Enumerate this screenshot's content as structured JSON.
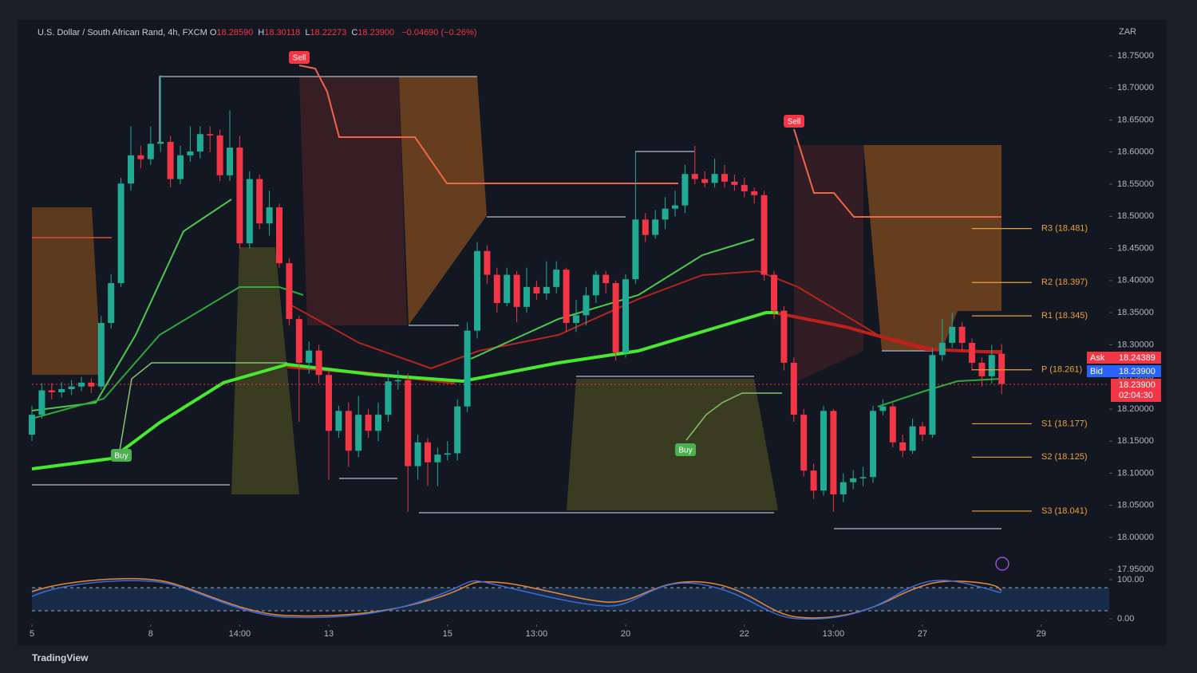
{
  "chart_data": {
    "type": "candlestick",
    "title": "U.S. Dollar / South African Rand, 4h, FXCM",
    "header": [
      {
        "key": "O",
        "value": "18.28590"
      },
      {
        "key": "H",
        "value": "18.30118"
      },
      {
        "key": "L",
        "value": "18.22273"
      },
      {
        "key": "C",
        "value": "18.23900"
      }
    ],
    "change": "−0.04690 (−0.26%)",
    "currency": "ZAR",
    "up_color": "#22ab94",
    "down_color": "#f23645",
    "open": [
      18.16,
      18.191,
      18.229,
      18.226,
      18.231,
      18.235,
      18.241,
      18.235,
      18.334,
      18.396,
      18.551,
      18.595,
      18.589,
      18.613,
      18.616,
      18.558,
      18.595,
      18.601,
      18.628,
      18.626,
      18.564,
      18.607,
      18.458,
      18.558,
      18.489,
      18.514,
      18.427,
      18.34,
      18.272,
      18.291,
      18.253,
      18.166,
      18.197,
      18.135,
      18.191,
      18.166,
      18.191,
      18.243,
      18.245,
      18.111,
      18.148,
      18.117,
      18.129,
      18.131,
      18.204,
      18.322,
      18.446,
      18.409,
      18.365,
      18.409,
      18.359,
      18.39,
      18.38,
      18.39,
      18.417,
      18.334,
      18.346,
      18.377,
      18.409,
      18.396,
      18.288,
      18.402,
      18.495,
      18.471,
      18.495,
      18.512,
      18.517,
      18.566,
      18.558,
      18.552,
      18.566,
      18.554,
      18.549,
      18.539,
      18.533,
      18.409,
      18.353,
      18.272,
      18.191,
      18.104,
      18.073,
      18.197,
      18.067,
      18.086,
      18.092,
      18.094,
      18.197,
      18.204,
      18.148,
      18.135,
      18.173,
      18.16,
      18.284,
      18.303,
      18.328,
      18.303,
      18.272,
      18.251,
      18.286
    ],
    "high": [
      18.205,
      18.24,
      18.24,
      18.242,
      18.245,
      18.25,
      18.248,
      18.345,
      18.41,
      18.56,
      18.64,
      18.61,
      18.64,
      18.72,
      18.625,
      18.61,
      18.64,
      18.64,
      18.64,
      18.635,
      18.665,
      18.625,
      18.57,
      18.565,
      18.54,
      18.52,
      18.435,
      18.345,
      18.305,
      18.3,
      18.26,
      18.205,
      18.21,
      18.22,
      18.2,
      18.21,
      18.255,
      18.26,
      18.255,
      18.16,
      18.155,
      18.14,
      18.15,
      18.215,
      18.335,
      18.46,
      18.455,
      18.42,
      18.42,
      18.415,
      18.42,
      18.4,
      18.43,
      18.43,
      18.42,
      18.37,
      18.39,
      18.415,
      18.415,
      18.4,
      18.41,
      18.6,
      18.505,
      18.51,
      18.53,
      18.54,
      18.58,
      18.61,
      18.57,
      18.59,
      18.58,
      18.565,
      18.56,
      18.545,
      18.54,
      18.415,
      18.36,
      18.28,
      18.2,
      18.115,
      18.205,
      18.2,
      18.1,
      18.105,
      18.11,
      18.205,
      18.215,
      18.21,
      18.16,
      18.185,
      18.18,
      18.295,
      18.34,
      18.35,
      18.335,
      18.31,
      18.28,
      18.3,
      18.301
    ],
    "low": [
      18.15,
      18.185,
      18.215,
      18.218,
      18.222,
      18.228,
      18.225,
      18.23,
      18.325,
      18.39,
      18.54,
      18.575,
      18.58,
      18.6,
      18.545,
      18.55,
      18.585,
      18.59,
      18.6,
      18.555,
      18.555,
      18.45,
      18.45,
      18.48,
      18.47,
      18.42,
      18.33,
      18.18,
      18.255,
      18.24,
      18.09,
      18.155,
      18.11,
      18.125,
      18.155,
      18.15,
      18.18,
      18.23,
      18.04,
      18.09,
      18.08,
      18.08,
      18.12,
      18.12,
      18.195,
      18.31,
      18.395,
      18.35,
      18.36,
      18.335,
      18.35,
      18.37,
      18.37,
      18.38,
      18.32,
      18.32,
      18.33,
      18.365,
      18.38,
      18.275,
      18.28,
      18.395,
      18.46,
      18.465,
      18.48,
      18.5,
      18.505,
      18.55,
      18.545,
      18.545,
      18.545,
      18.54,
      18.53,
      18.52,
      18.4,
      18.34,
      18.26,
      18.18,
      18.095,
      18.06,
      18.065,
      18.04,
      18.055,
      18.075,
      18.08,
      18.085,
      18.19,
      18.14,
      18.125,
      18.13,
      18.15,
      18.155,
      18.275,
      18.295,
      18.29,
      18.26,
      18.235,
      18.24,
      18.223
    ],
    "close": [
      18.191,
      18.229,
      18.226,
      18.231,
      18.235,
      18.241,
      18.235,
      18.334,
      18.396,
      18.551,
      18.595,
      18.589,
      18.613,
      18.616,
      18.558,
      18.595,
      18.601,
      18.628,
      18.626,
      18.564,
      18.607,
      18.458,
      18.558,
      18.489,
      18.514,
      18.427,
      18.34,
      18.272,
      18.291,
      18.253,
      18.166,
      18.197,
      18.135,
      18.191,
      18.166,
      18.191,
      18.243,
      18.245,
      18.111,
      18.148,
      18.117,
      18.129,
      18.131,
      18.204,
      18.322,
      18.446,
      18.409,
      18.365,
      18.409,
      18.359,
      18.39,
      18.38,
      18.39,
      18.417,
      18.334,
      18.346,
      18.377,
      18.409,
      18.396,
      18.288,
      18.402,
      18.495,
      18.471,
      18.495,
      18.512,
      18.517,
      18.566,
      18.558,
      18.552,
      18.566,
      18.554,
      18.549,
      18.539,
      18.533,
      18.409,
      18.353,
      18.272,
      18.191,
      18.104,
      18.073,
      18.197,
      18.067,
      18.086,
      18.092,
      18.094,
      18.197,
      18.204,
      18.148,
      18.135,
      18.173,
      18.16,
      18.284,
      18.303,
      18.328,
      18.303,
      18.272,
      18.251,
      18.284,
      18.239
    ],
    "ylim": [
      17.94,
      18.8
    ],
    "yticks": [
      {
        "value": 17.95,
        "label": "17.95000"
      },
      {
        "value": 18.0,
        "label": "18.00000"
      },
      {
        "value": 18.05,
        "label": "18.05000"
      },
      {
        "value": 18.1,
        "label": "18.10000"
      },
      {
        "value": 18.15,
        "label": "18.15000"
      },
      {
        "value": 18.2,
        "label": "18.20000"
      },
      {
        "value": 18.25,
        "label": "18.25000"
      },
      {
        "value": 18.3,
        "label": "18.30000"
      },
      {
        "value": 18.35,
        "label": "18.35000"
      },
      {
        "value": 18.4,
        "label": "18.40000"
      },
      {
        "value": 18.45,
        "label": "18.45000"
      },
      {
        "value": 18.5,
        "label": "18.50000"
      },
      {
        "value": 18.55,
        "label": "18.55000"
      },
      {
        "value": 18.6,
        "label": "18.60000"
      },
      {
        "value": 18.65,
        "label": "18.65000"
      },
      {
        "value": 18.7,
        "label": "18.70000"
      },
      {
        "value": 18.75,
        "label": "18.75000"
      }
    ],
    "xticks": [
      {
        "value": 0,
        "label": "5"
      },
      {
        "value": 12,
        "label": "8"
      },
      {
        "value": 21,
        "label": "14:00"
      },
      {
        "value": 30,
        "label": "13"
      },
      {
        "value": 42,
        "label": "15"
      },
      {
        "value": 51,
        "label": "13:00"
      },
      {
        "value": 60,
        "label": "20"
      },
      {
        "value": 72,
        "label": "22"
      },
      {
        "value": 81,
        "label": "13:00"
      },
      {
        "value": 90,
        "label": "27"
      },
      {
        "value": 102,
        "label": "29"
      }
    ],
    "pivots": [
      {
        "label": "R3 (18.481)",
        "value": 18.481
      },
      {
        "label": "R2 (18.397)",
        "value": 18.397
      },
      {
        "label": "R1 (18.345)",
        "value": 18.345
      },
      {
        "label": "P (18.261)",
        "value": 18.261
      },
      {
        "label": "S1 (18.177)",
        "value": 18.177
      },
      {
        "label": "S2 (18.125)",
        "value": 18.125
      },
      {
        "label": "S3 (18.041)",
        "value": 18.041
      }
    ],
    "signals": [
      "Sell",
      "Buy",
      "Sell",
      "Buy"
    ],
    "price_tags": {
      "ask_label": "Ask",
      "ask": "18.24389",
      "bid_label": "Bid",
      "bid": "18.23900",
      "last": "18.23900",
      "countdown": "02:04:30"
    },
    "oscillator": {
      "ylim": [
        0,
        100
      ],
      "yticks": [
        {
          "value": 100,
          "label": "100.00"
        },
        {
          "value": 0,
          "label": "0.00"
        }
      ]
    },
    "footer": "TradingView"
  }
}
